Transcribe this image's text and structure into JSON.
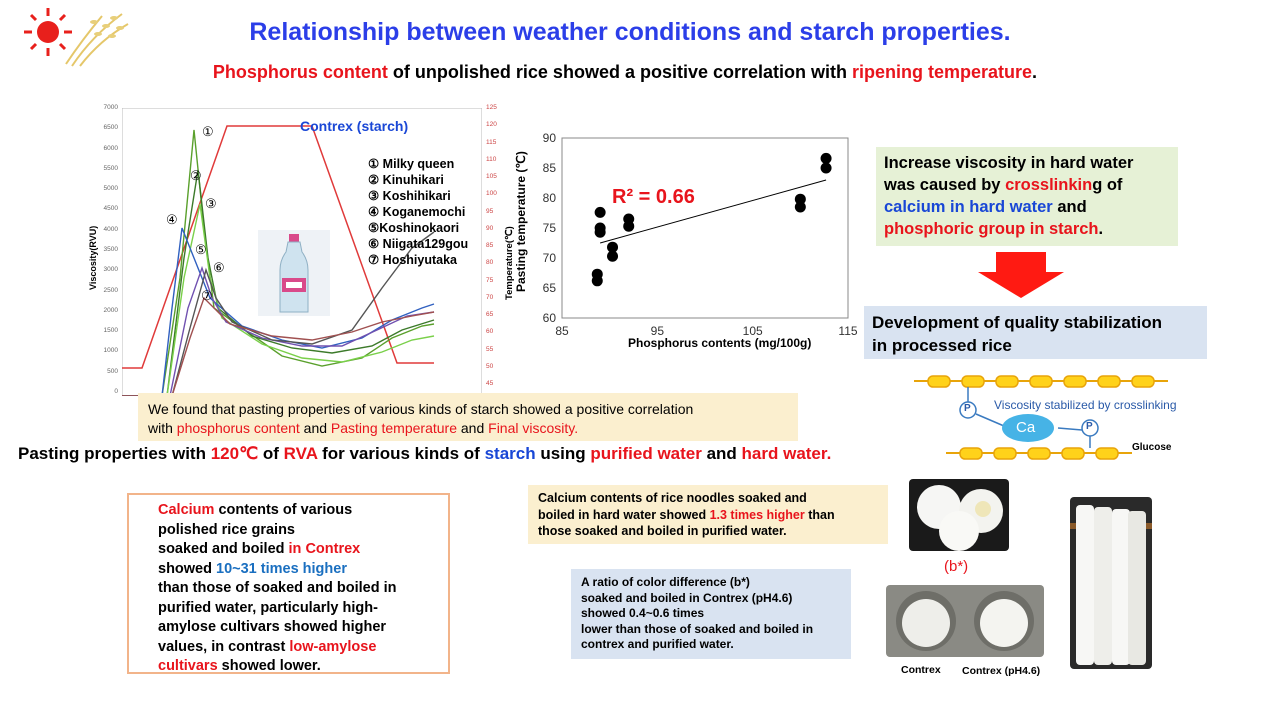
{
  "title": "Relationship between weather conditions and starch properties.",
  "subtitle": {
    "part1": "Phosphorus content",
    "part2": " of unpolished rice showed a positive correlation with ",
    "part3": "ripening temperature",
    "part4": "."
  },
  "rva_chart": {
    "series_title": "Contrex (starch)",
    "y_left_label": "Viscosity(RVU)",
    "y_right_label": "Temperature(℃)",
    "y_left_ticks": [
      "7000",
      "6500",
      "6000",
      "5500",
      "5000",
      "4500",
      "4000",
      "3500",
      "3000",
      "2500",
      "2000",
      "1500",
      "1000",
      "500",
      "0"
    ],
    "y_right_ticks": [
      "125",
      "120",
      "115",
      "110",
      "105",
      "100",
      "95",
      "90",
      "85",
      "80",
      "75",
      "70",
      "65",
      "60",
      "55",
      "50",
      "45"
    ],
    "legend": [
      "① Milky queen",
      "② Kinuhikari",
      "③ Koshihikari",
      "④ Koganemochi",
      "⑤Koshinokaori",
      "⑥ Niigata129gou",
      "⑦ Hoshiyutaka"
    ],
    "markers": [
      "①",
      "②",
      "③",
      "④",
      "⑤",
      "⑥",
      "⑦"
    ],
    "colors": {
      "temperature": "#e03a3a",
      "milky": "#5aa02c",
      "kinuhikari": "#3c7a2a",
      "koshihikari": "#7ad04a",
      "koganemochi": "#3060c0",
      "koshinokaori": "#7050b0",
      "niigata": "#555555",
      "hoshiyutaka": "#a05050"
    }
  },
  "chart_data": {
    "type": "scatter",
    "title": "",
    "xlabel": "Phosphorus  contents (mg/100g)",
    "ylabel": "Pasting  temperature (℃)",
    "xlim": [
      85,
      115
    ],
    "ylim": [
      60,
      90
    ],
    "xticks": [
      "85",
      "95",
      "105",
      "115"
    ],
    "yticks": [
      "90",
      "85",
      "80",
      "75",
      "70",
      "65",
      "60"
    ],
    "annotation": "R² = 0.66",
    "points": [
      [
        88.7,
        66.2
      ],
      [
        88.7,
        67.3
      ],
      [
        89.0,
        74.3
      ],
      [
        89.0,
        75.0
      ],
      [
        89.0,
        77.6
      ],
      [
        90.3,
        70.3
      ],
      [
        90.3,
        71.8
      ],
      [
        92.0,
        75.3
      ],
      [
        92.0,
        76.5
      ],
      [
        110.0,
        78.5
      ],
      [
        110.0,
        79.8
      ],
      [
        112.7,
        85.0
      ],
      [
        112.7,
        86.6
      ]
    ],
    "trendline": [
      [
        89.0,
        72.5
      ],
      [
        112.7,
        83.0
      ]
    ]
  },
  "green_box": {
    "l1": "Increase viscosity in hard water",
    "l2a": "was caused by ",
    "l2b": "crosslinkin",
    "l2c": "g of",
    "l3": "calcium in hard water",
    "l3b": " and",
    "l4": "phosphoric group in starch",
    "l4b": "."
  },
  "blue_box": {
    "l1": "Development of quality stabilization",
    "l2": "in processed rice"
  },
  "diagram": {
    "ca": "Ca",
    "p": "P",
    "caption": "Viscosity stabilized by crosslinking",
    "glucose": "Glucose"
  },
  "found_box": {
    "l1": "We found that pasting properties of various kinds of starch showed a positive correlation",
    "l2a": " with ",
    "l2b": "phosphorus content",
    "l2c": "  and  ",
    "l2d": "Pasting temperature",
    "l2e": " and ",
    "l2f": "Final viscosity."
  },
  "pasting_line": {
    "a": "Pasting properties with ",
    "b": "120℃",
    "c": " of ",
    "d": "RVA",
    "e": " for various kinds of ",
    "f": "starch",
    "g": " using ",
    "h": "purified water",
    "i": " and ",
    "j": "hard water."
  },
  "calcium_box": {
    "l1": "Calcium",
    "l1b": "  contents of various",
    "l2": "polished rice grains",
    "l3a": "soaked and boiled ",
    "l3b": "in Contrex",
    "l4a": "showed ",
    "l4b": "10~31 times  higher",
    "l5": "than those of soaked and boiled in",
    "l6": "purified water, particularly high-",
    "l7": "amylose cultivars showed higher",
    "l8a": "values, in contrast  ",
    "l8b": "low-amylose",
    "l9a": "cultivars",
    "l9b": " showed lower."
  },
  "noodle_box": {
    "l1": "Calcium contents of rice noodles soaked and",
    "l2a": "boiled in hard water showed ",
    "l2b": "1.3 times higher",
    "l2c": " than",
    "l3": "those soaked and boiled in purified water."
  },
  "color_box": {
    "l1": "A ratio of color difference (b*)",
    "l2": " soaked and boiled in Contrex (pH4.6)",
    "l3": "showed 0.4~0.6 times",
    "l4": "lower than those of soaked and boiled in",
    "l5": "contrex and purified water."
  },
  "photos": {
    "bstar": "(b*)",
    "contrex": "Contrex",
    "contrex_ph": "Contrex (pH4.6)"
  }
}
